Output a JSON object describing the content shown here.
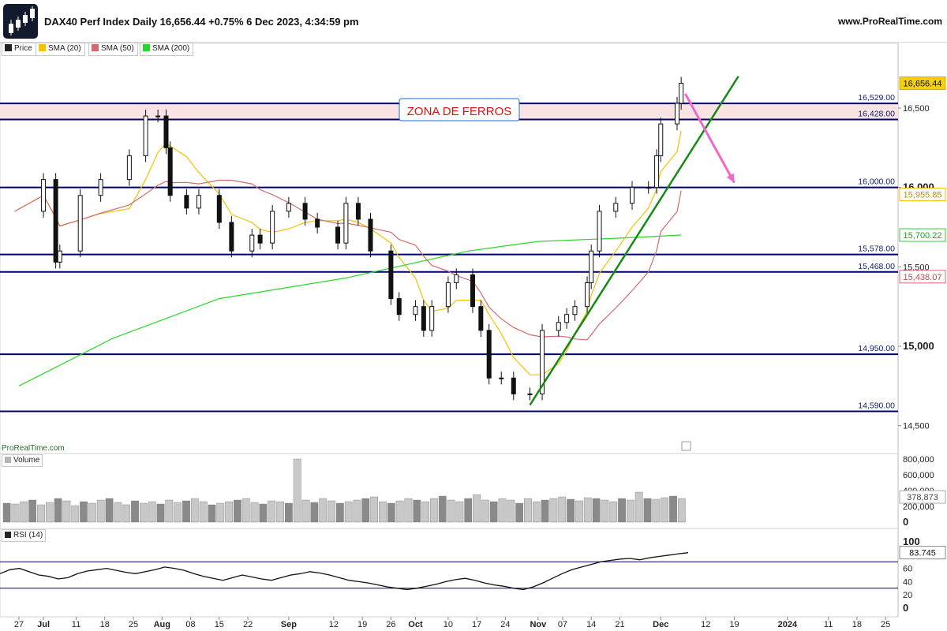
{
  "header": {
    "title": "DAX40 Perf Index Daily 16,656.44 +0.75% 6 Dec 2023, 4:34:59 pm",
    "site": "www.ProRealTime.com"
  },
  "legend": {
    "price": "Price",
    "sma20": "SMA (20)",
    "sma50": "SMA (50)",
    "sma200": "SMA (200)"
  },
  "watermark": "ProRealTime.com",
  "colors": {
    "sma20": "#f2c200",
    "sma50": "#d26b6b",
    "sma200": "#2ad62a",
    "hlines": "#00006e",
    "trendline": "#168a16",
    "arrow": "#f069c8",
    "zone_fill": "#f9e3e3",
    "zone_text": "#e01010",
    "current_tag": "#f5cf14"
  },
  "chart_data": [
    {
      "type": "candlestick",
      "instrument": "DAX40 Perf Index",
      "timeframe": "Daily",
      "last": 16656.44,
      "change_pct": "+0.75%",
      "ylim": [
        14380,
        16870
      ],
      "y_ticks": [
        "16,500",
        "16,000",
        "15,500",
        "15,000",
        "14,500"
      ],
      "x_ticks": [
        "27",
        "Jul",
        "11",
        "18",
        "25",
        "Aug",
        "08",
        "15",
        "22",
        "Sep",
        "12",
        "19",
        "26",
        "Oct",
        "10",
        "17",
        "24",
        "Nov",
        "07",
        "14",
        "21",
        "Dec",
        "12",
        "19",
        "2024",
        "11",
        "18",
        "25"
      ],
      "x_tick_dates": [
        "2023-06-27",
        "2023-07-03",
        "2023-07-11",
        "2023-07-18",
        "2023-07-25",
        "2023-08-01",
        "2023-08-08",
        "2023-08-15",
        "2023-08-22",
        "2023-09-01",
        "2023-09-12",
        "2023-09-19",
        "2023-09-26",
        "2023-10-02",
        "2023-10-10",
        "2023-10-17",
        "2023-10-24",
        "2023-11-01",
        "2023-11-07",
        "2023-11-14",
        "2023-11-21",
        "2023-12-01",
        "2023-12-12",
        "2023-12-19",
        "2024-01-01",
        "2024-01-11",
        "2024-01-18",
        "2024-01-25"
      ],
      "bold_ticks": [
        "Jul",
        "Aug",
        "Sep",
        "Oct",
        "Nov",
        "Dec",
        "2024"
      ],
      "close_series": [
        {
          "date": "2023-06-26",
          "close": 15850
        },
        {
          "date": "2023-07-03",
          "close": 16050
        },
        {
          "date": "2023-07-06",
          "close": 15530
        },
        {
          "date": "2023-07-07",
          "close": 15600
        },
        {
          "date": "2023-07-12",
          "close": 15950
        },
        {
          "date": "2023-07-17",
          "close": 16050
        },
        {
          "date": "2023-07-24",
          "close": 16200
        },
        {
          "date": "2023-07-28",
          "close": 16450
        },
        {
          "date": "2023-07-31",
          "close": 16450
        },
        {
          "date": "2023-08-02",
          "close": 16250
        },
        {
          "date": "2023-08-03",
          "close": 15950
        },
        {
          "date": "2023-08-07",
          "close": 15870
        },
        {
          "date": "2023-08-10",
          "close": 15950
        },
        {
          "date": "2023-08-15",
          "close": 15780
        },
        {
          "date": "2023-08-18",
          "close": 15600
        },
        {
          "date": "2023-08-23",
          "close": 15700
        },
        {
          "date": "2023-08-25",
          "close": 15650
        },
        {
          "date": "2023-08-28",
          "close": 15850
        },
        {
          "date": "2023-09-01",
          "close": 15900
        },
        {
          "date": "2023-09-05",
          "close": 15800
        },
        {
          "date": "2023-09-08",
          "close": 15750
        },
        {
          "date": "2023-09-13",
          "close": 15650
        },
        {
          "date": "2023-09-15",
          "close": 15900
        },
        {
          "date": "2023-09-18",
          "close": 15800
        },
        {
          "date": "2023-09-21",
          "close": 15600
        },
        {
          "date": "2023-09-26",
          "close": 15300
        },
        {
          "date": "2023-09-28",
          "close": 15200
        },
        {
          "date": "2023-10-02",
          "close": 15250
        },
        {
          "date": "2023-10-04",
          "close": 15100
        },
        {
          "date": "2023-10-06",
          "close": 15250
        },
        {
          "date": "2023-10-10",
          "close": 15400
        },
        {
          "date": "2023-10-12",
          "close": 15450
        },
        {
          "date": "2023-10-16",
          "close": 15250
        },
        {
          "date": "2023-10-18",
          "close": 15100
        },
        {
          "date": "2023-10-20",
          "close": 14800
        },
        {
          "date": "2023-10-23",
          "close": 14800
        },
        {
          "date": "2023-10-26",
          "close": 14700
        },
        {
          "date": "2023-10-30",
          "close": 14700
        },
        {
          "date": "2023-11-02",
          "close": 15100
        },
        {
          "date": "2023-11-06",
          "close": 15150
        },
        {
          "date": "2023-11-08",
          "close": 15200
        },
        {
          "date": "2023-11-10",
          "close": 15250
        },
        {
          "date": "2023-11-13",
          "close": 15400
        },
        {
          "date": "2023-11-14",
          "close": 15600
        },
        {
          "date": "2023-11-16",
          "close": 15850
        },
        {
          "date": "2023-11-20",
          "close": 15900
        },
        {
          "date": "2023-11-24",
          "close": 16000
        },
        {
          "date": "2023-11-28",
          "close": 16000
        },
        {
          "date": "2023-11-30",
          "close": 16200
        },
        {
          "date": "2023-12-01",
          "close": 16400
        },
        {
          "date": "2023-12-05",
          "close": 16530
        },
        {
          "date": "2023-12-06",
          "close": 16656.44
        }
      ],
      "sma": {
        "sma20": {
          "label": "SMA (20)",
          "last": 15955.85
        },
        "sma50": {
          "label": "SMA (50)",
          "last": 15438.07
        },
        "sma200": {
          "label": "SMA (200)",
          "last": 15700.22
        }
      },
      "horizontal_levels": [
        {
          "value": 16529.0,
          "label": "16,529.00"
        },
        {
          "value": 16428.0,
          "label": "16,428.00"
        },
        {
          "value": 16000.0,
          "label": "16,000.00"
        },
        {
          "value": 15578.0,
          "label": "15,578.00"
        },
        {
          "value": 15468.0,
          "label": "15,468.00"
        },
        {
          "value": 14950.0,
          "label": "14,950.00"
        },
        {
          "value": 14590.0,
          "label": "14,590.00"
        }
      ],
      "zone": {
        "label": "ZONA DE FERROS",
        "from": 16428.0,
        "to": 16529.0
      },
      "trendline": {
        "from": {
          "date": "2023-10-30",
          "value": 14630
        },
        "to": {
          "date": "2023-12-20",
          "value": 16700
        }
      },
      "projection_arrow": {
        "from": {
          "date": "2023-12-07",
          "value": 16590
        },
        "to": {
          "date": "2023-12-19",
          "value": 16030
        }
      },
      "value_tags": [
        {
          "label": "16,656.44",
          "kind": "price"
        },
        {
          "label": "15,955.85",
          "kind": "sma20"
        },
        {
          "label": "15,700.22",
          "kind": "sma200"
        },
        {
          "label": "15,438.07",
          "kind": "sma50"
        }
      ]
    },
    {
      "type": "bar",
      "title": "Volume",
      "y_ticks": [
        "800,000",
        "600,000",
        "400,000",
        "200,000",
        "0"
      ],
      "ylim": [
        0,
        900000
      ],
      "last": "378,873",
      "values_description": "daily volume, mostly 200k-300k with spikes ~400k and one ~800k in mid Sep"
    },
    {
      "type": "line",
      "title": "RSI (14)",
      "y_ticks": [
        "100",
        "80",
        "60",
        "40",
        "20",
        "0"
      ],
      "ylim": [
        0,
        100
      ],
      "levels": [
        70,
        30
      ],
      "last": "83.745"
    }
  ]
}
